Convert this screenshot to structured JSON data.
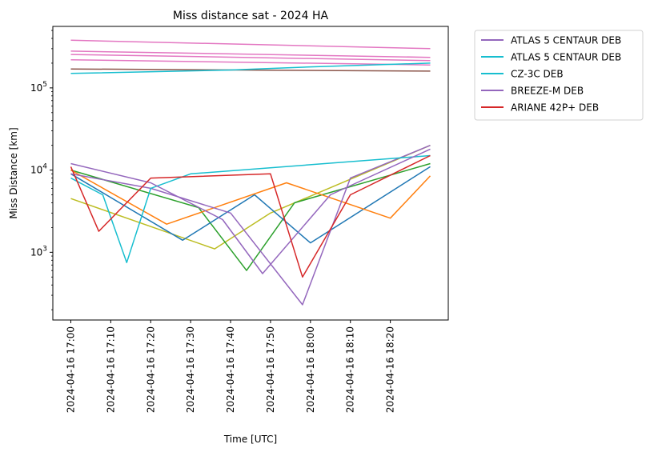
{
  "chart_data": {
    "type": "line",
    "title": "Miss distance sat - 2024 HA",
    "xlabel": "Time [UTC]",
    "ylabel": "Miss Distance [km]",
    "yscale": "log",
    "ylim": [
      150,
      560000
    ],
    "x_start": "2024-04-16 17:00",
    "x_end": "2024-04-16 18:30",
    "x_ticks": [
      "2024-04-16 17:00",
      "2024-04-16 17:10",
      "2024-04-16 17:20",
      "2024-04-16 17:30",
      "2024-04-16 17:40",
      "2024-04-16 17:50",
      "2024-04-16 18:00",
      "2024-04-16 18:10",
      "2024-04-16 18:20"
    ],
    "y_ticks": [
      {
        "value": 1000,
        "mantissa": "10",
        "exponent": "3"
      },
      {
        "value": 10000,
        "mantissa": "10",
        "exponent": "4"
      },
      {
        "value": 100000,
        "mantissa": "10",
        "exponent": "5"
      }
    ],
    "grid": false,
    "legend_position": "outside-right",
    "legend": [
      {
        "label": "ATLAS 5 CENTAUR DEB",
        "color": "#9467bd"
      },
      {
        "label": "ATLAS 5 CENTAUR DEB",
        "color": "#17becf"
      },
      {
        "label": "CZ-3C DEB",
        "color": "#17becf"
      },
      {
        "label": "BREEZE-M DEB",
        "color": "#9467bd"
      },
      {
        "label": "ARIANE 42P+ DEB",
        "color": "#d62728"
      }
    ],
    "series": [
      {
        "name": "ATLAS 5 CENTAUR DEB",
        "color": "#9467bd",
        "x": [
          "2024-04-16 17:00",
          "2024-04-16 17:20",
          "2024-04-16 17:40",
          "2024-04-16 17:58",
          "2024-04-16 18:10",
          "2024-04-16 18:30"
        ],
        "values": [
          9000,
          6000,
          3000,
          230,
          8000,
          20000
        ]
      },
      {
        "name": "ATLAS 5 CENTAUR DEB",
        "color": "#17becf",
        "x": [
          "2024-04-16 17:00",
          "2024-04-16 17:40",
          "2024-04-16 18:00",
          "2024-04-16 18:30"
        ],
        "values": [
          150000,
          165000,
          180000,
          200000
        ]
      },
      {
        "name": "CZ-3C DEB",
        "color": "#17becf",
        "x": [
          "2024-04-16 17:00",
          "2024-04-16 17:08",
          "2024-04-16 17:14",
          "2024-04-16 17:20",
          "2024-04-16 17:30",
          "2024-04-16 18:30"
        ],
        "values": [
          8000,
          5000,
          750,
          6000,
          9000,
          15000
        ]
      },
      {
        "name": "BREEZE-M DEB",
        "color": "#9467bd",
        "x": [
          "2024-04-16 17:00",
          "2024-04-16 17:20",
          "2024-04-16 17:38",
          "2024-04-16 17:48",
          "2024-04-16 18:05",
          "2024-04-16 18:30"
        ],
        "values": [
          12000,
          7000,
          2500,
          550,
          5000,
          18000
        ]
      },
      {
        "name": "ARIANE 42P+ DEB",
        "color": "#d62728",
        "x": [
          "2024-04-16 17:00",
          "2024-04-16 17:07",
          "2024-04-16 17:20",
          "2024-04-16 17:50",
          "2024-04-16 17:58",
          "2024-04-16 18:10",
          "2024-04-16 18:30"
        ],
        "values": [
          11000,
          1800,
          8000,
          9000,
          500,
          5000,
          15000
        ]
      },
      {
        "name": "",
        "color": "#e377c2",
        "x": [
          "2024-04-16 17:00",
          "2024-04-16 18:30"
        ],
        "values": [
          380000,
          300000
        ]
      },
      {
        "name": "",
        "color": "#e377c2",
        "x": [
          "2024-04-16 17:00",
          "2024-04-16 18:30"
        ],
        "values": [
          280000,
          235000
        ]
      },
      {
        "name": "",
        "color": "#e377c2",
        "x": [
          "2024-04-16 17:00",
          "2024-04-16 18:30"
        ],
        "values": [
          255000,
          215000
        ]
      },
      {
        "name": "",
        "color": "#e377c2",
        "x": [
          "2024-04-16 17:00",
          "2024-04-16 18:30"
        ],
        "values": [
          220000,
          190000
        ]
      },
      {
        "name": "",
        "color": "#8c564b",
        "x": [
          "2024-04-16 17:00",
          "2024-04-16 18:30"
        ],
        "values": [
          170000,
          160000
        ]
      },
      {
        "name": "",
        "color": "#bcbd22",
        "x": [
          "2024-04-16 17:00",
          "2024-04-16 17:36",
          "2024-04-16 17:50",
          "2024-04-16 18:30"
        ],
        "values": [
          4500,
          1100,
          3000,
          20000
        ]
      },
      {
        "name": "",
        "color": "#2ca02c",
        "x": [
          "2024-04-16 17:00",
          "2024-04-16 17:32",
          "2024-04-16 17:44",
          "2024-04-16 17:56",
          "2024-04-16 18:30"
        ],
        "values": [
          10000,
          3500,
          600,
          4000,
          12000
        ]
      },
      {
        "name": "",
        "color": "#1f77b4",
        "x": [
          "2024-04-16 17:00",
          "2024-04-16 17:28",
          "2024-04-16 17:46",
          "2024-04-16 18:00",
          "2024-04-16 18:30"
        ],
        "values": [
          9000,
          1400,
          5000,
          1300,
          11000
        ]
      },
      {
        "name": "",
        "color": "#ff7f0e",
        "x": [
          "2024-04-16 17:00",
          "2024-04-16 17:24",
          "2024-04-16 17:54",
          "2024-04-16 18:20",
          "2024-04-16 18:30"
        ],
        "values": [
          10000,
          2200,
          7000,
          2600,
          8500
        ]
      }
    ]
  }
}
